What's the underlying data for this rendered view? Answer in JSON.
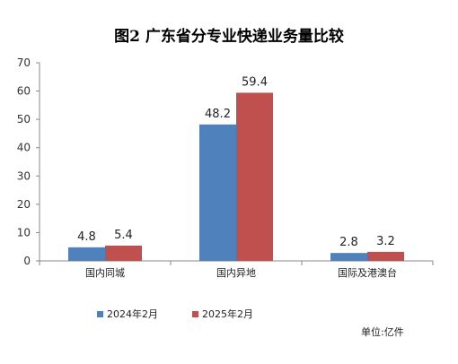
{
  "chart_data": {
    "type": "bar",
    "title": "图2 广东省分专业快递业务量比较",
    "categories": [
      "国内同城",
      "国内异地",
      "国际及港澳台"
    ],
    "series": [
      {
        "name": "2024年2月",
        "values": [
          4.8,
          48.2,
          2.8
        ],
        "color": "#4f81bd"
      },
      {
        "name": "2025年2月",
        "values": [
          5.4,
          59.4,
          3.2
        ],
        "color": "#c0504d"
      }
    ],
    "ylim": [
      0,
      70
    ],
    "yticks": [
      0,
      10,
      20,
      30,
      40,
      50,
      60,
      70
    ],
    "grid": false,
    "legend_position": "bottom",
    "unit": "单位:亿件",
    "xlabel": "",
    "ylabel": ""
  }
}
